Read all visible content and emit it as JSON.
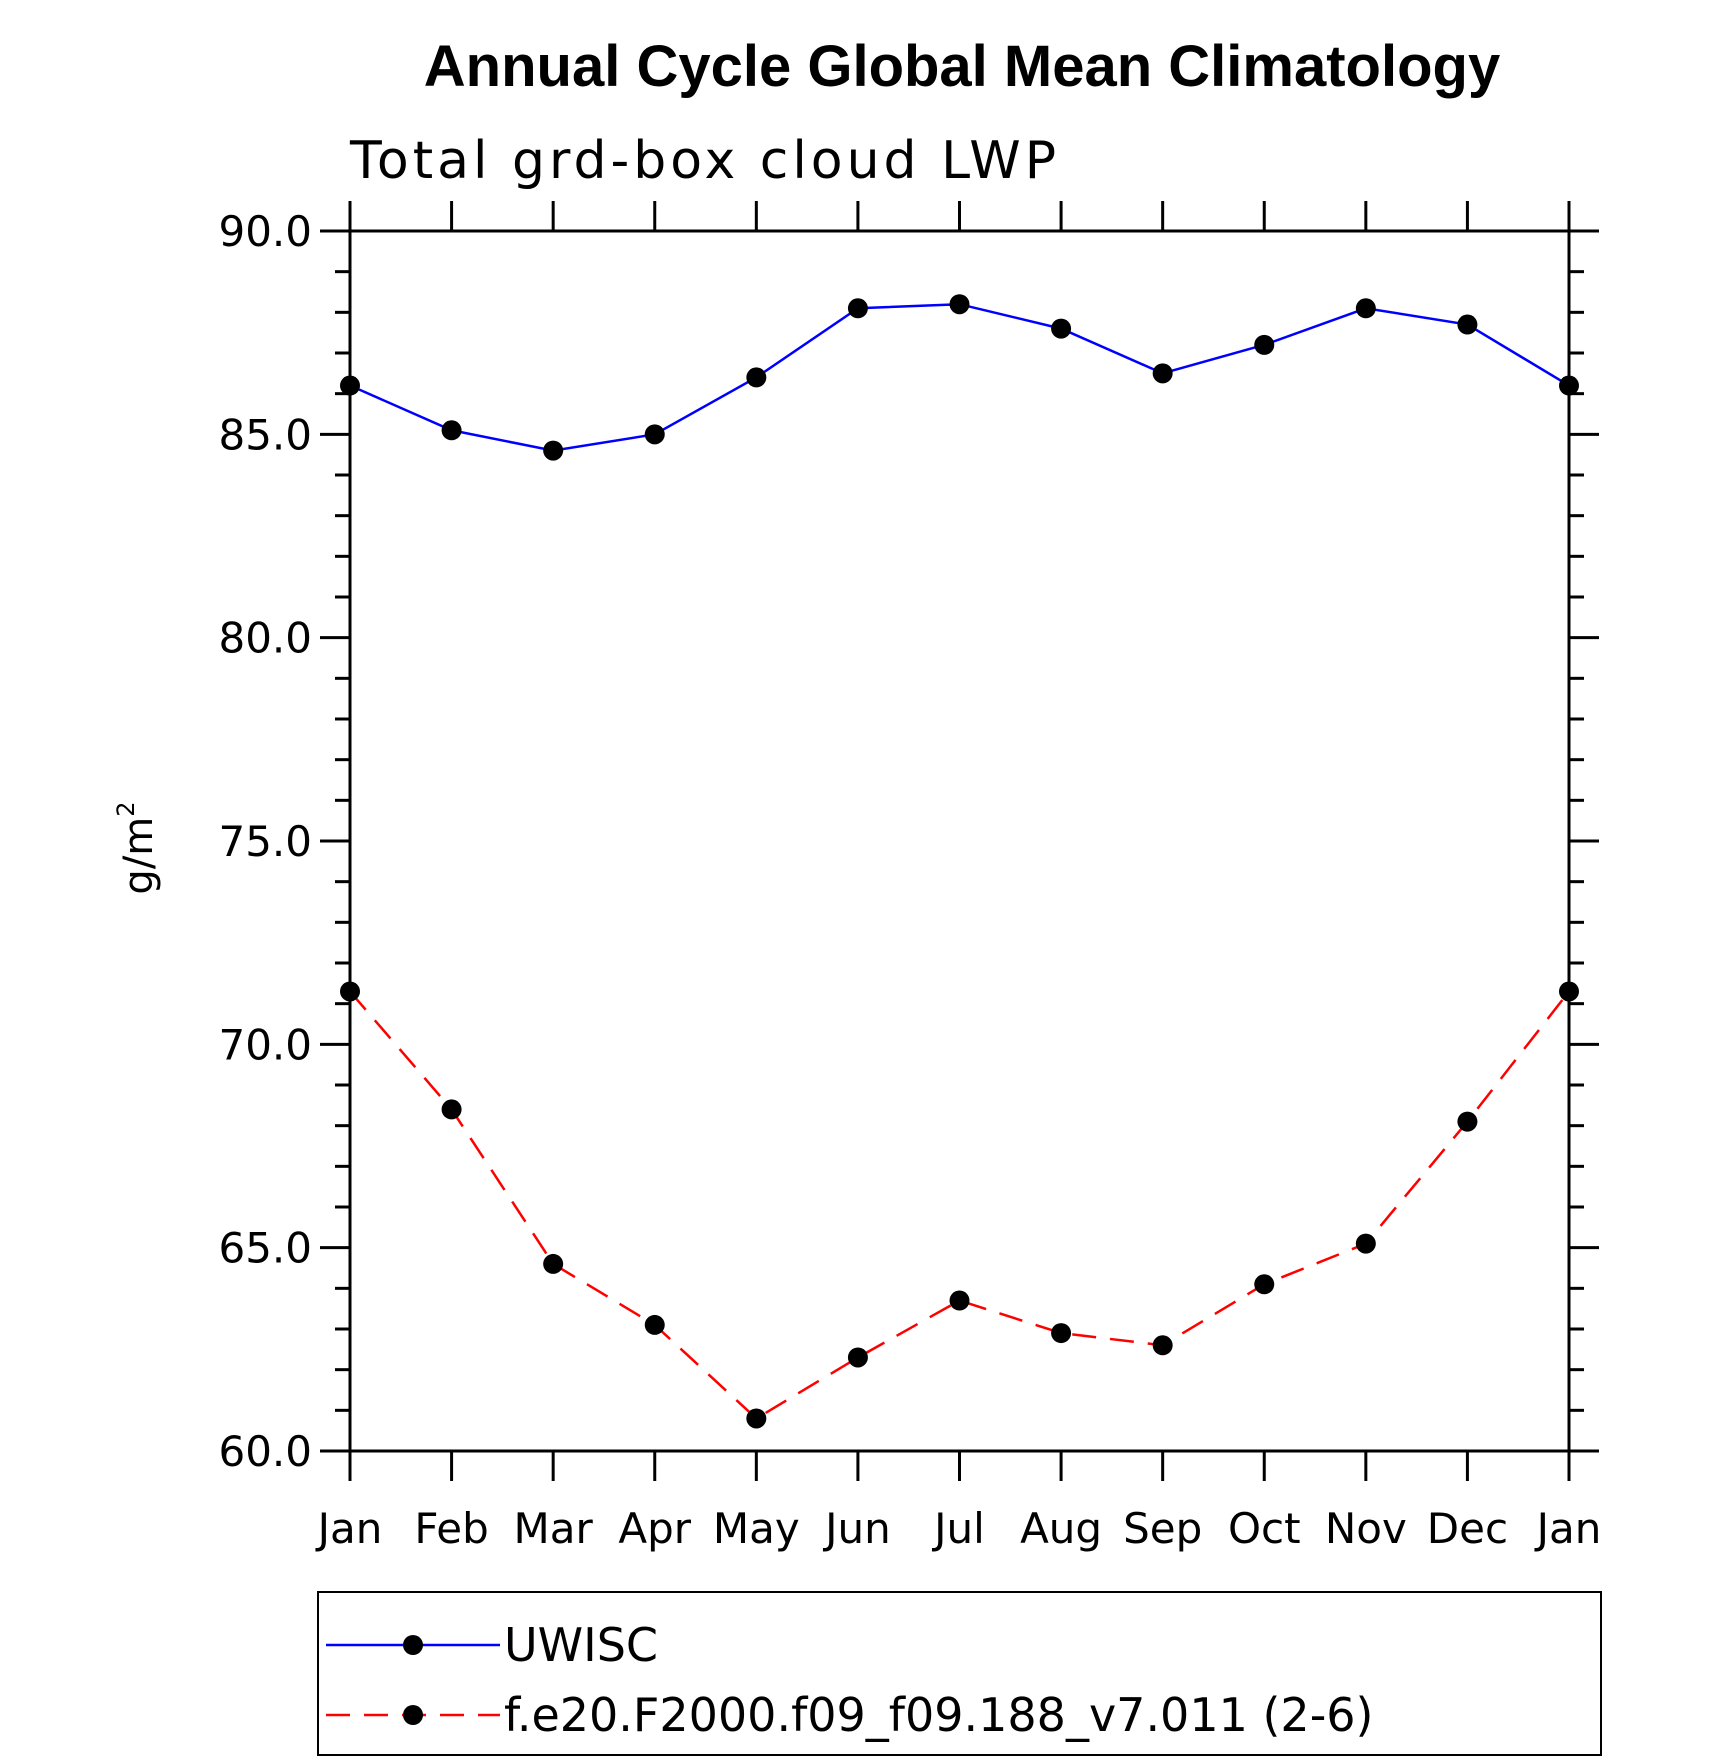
{
  "chart_data": {
    "type": "line",
    "title": "Annual Cycle Global Mean Climatology",
    "subtitle": "Total grd-box cloud LWP",
    "ylabel": "g/m",
    "ylabel_superscript": "2",
    "ylim": [
      60.0,
      90.0
    ],
    "yticks": [
      "60.0",
      "65.0",
      "70.0",
      "75.0",
      "80.0",
      "85.0",
      "90.0"
    ],
    "categories": [
      "Jan",
      "Feb",
      "Mar",
      "Apr",
      "May",
      "Jun",
      "Jul",
      "Aug",
      "Sep",
      "Oct",
      "Nov",
      "Dec",
      "Jan"
    ],
    "grid": false,
    "legend_position": "bottom",
    "series": [
      {
        "name": "UWISC",
        "color": "#0000ff",
        "dash": "solid",
        "values": [
          86.2,
          85.1,
          84.6,
          85.0,
          86.4,
          88.1,
          88.2,
          87.6,
          86.5,
          87.2,
          88.1,
          87.7,
          86.2
        ]
      },
      {
        "name": "f.e20.F2000.f09_f09.188_v7.011 (2-6)",
        "color": "#ff0000",
        "dash": "dashed",
        "values": [
          71.3,
          68.4,
          64.6,
          63.1,
          60.8,
          62.3,
          63.7,
          62.9,
          62.6,
          64.1,
          65.1,
          68.1,
          71.3
        ]
      }
    ]
  }
}
